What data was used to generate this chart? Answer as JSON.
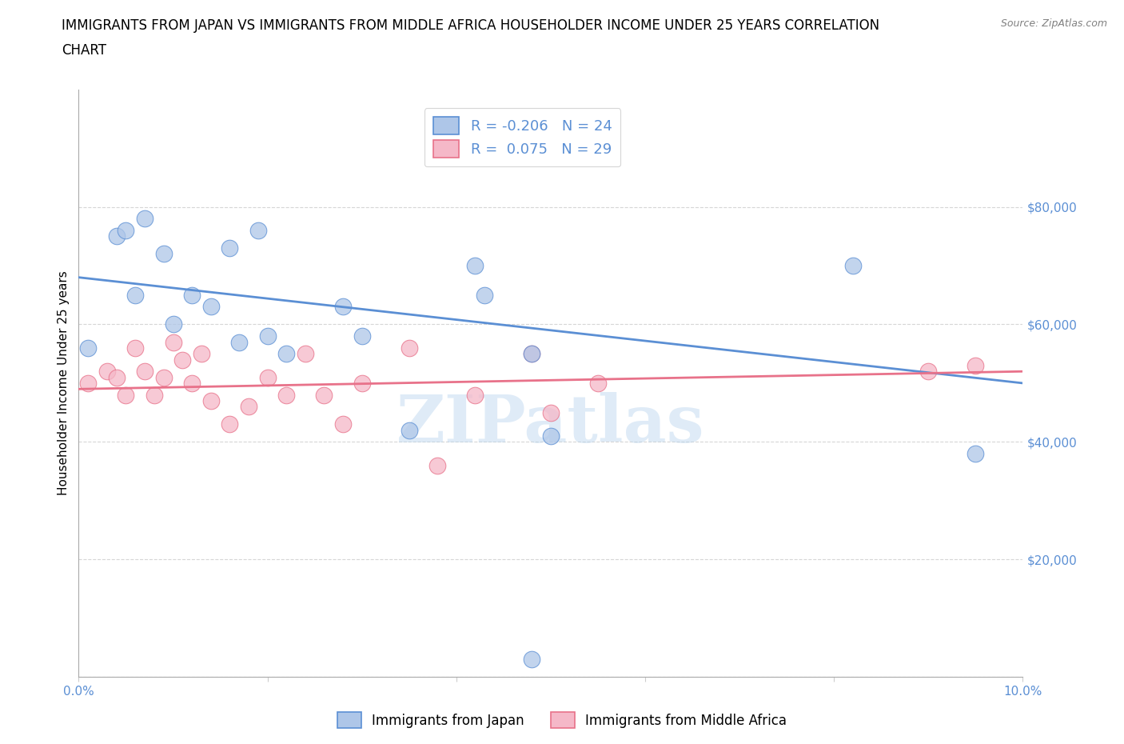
{
  "title_line1": "IMMIGRANTS FROM JAPAN VS IMMIGRANTS FROM MIDDLE AFRICA HOUSEHOLDER INCOME UNDER 25 YEARS CORRELATION",
  "title_line2": "CHART",
  "source": "Source: ZipAtlas.com",
  "ylabel": "Householder Income Under 25 years",
  "xlim": [
    0.0,
    0.1
  ],
  "ylim": [
    0,
    100000
  ],
  "yticks": [
    0,
    20000,
    40000,
    60000,
    80000
  ],
  "ytick_labels": [
    "",
    "$20,000",
    "$40,000",
    "$60,000",
    "$80,000"
  ],
  "xticks": [
    0.0,
    0.02,
    0.04,
    0.06,
    0.08,
    0.1
  ],
  "xtick_labels": [
    "0.0%",
    "",
    "",
    "",
    "",
    "10.0%"
  ],
  "japan_color": "#aec6e8",
  "japan_line_color": "#5b8fd4",
  "africa_color": "#f5b8c8",
  "africa_line_color": "#e8728a",
  "watermark_color": "#b8d4ee",
  "watermark_text": "ZIPatlas",
  "tick_color": "#5b8fd4",
  "grid_color": "#cccccc",
  "background_color": "#ffffff",
  "title_fontsize": 12,
  "tick_fontsize": 11,
  "axis_label_fontsize": 11,
  "japan_x": [
    0.001,
    0.004,
    0.005,
    0.006,
    0.007,
    0.009,
    0.01,
    0.012,
    0.014,
    0.016,
    0.017,
    0.019,
    0.02,
    0.022,
    0.028,
    0.03,
    0.035,
    0.042,
    0.043,
    0.048,
    0.05,
    0.082,
    0.095,
    0.048
  ],
  "japan_y": [
    56000,
    75000,
    76000,
    65000,
    78000,
    72000,
    60000,
    65000,
    63000,
    73000,
    57000,
    76000,
    58000,
    55000,
    63000,
    58000,
    42000,
    70000,
    65000,
    55000,
    41000,
    70000,
    38000,
    3000
  ],
  "africa_x": [
    0.001,
    0.003,
    0.004,
    0.005,
    0.006,
    0.007,
    0.008,
    0.009,
    0.01,
    0.011,
    0.012,
    0.013,
    0.014,
    0.016,
    0.018,
    0.02,
    0.022,
    0.024,
    0.026,
    0.028,
    0.03,
    0.035,
    0.038,
    0.042,
    0.048,
    0.05,
    0.055,
    0.09,
    0.095
  ],
  "africa_y": [
    50000,
    52000,
    51000,
    48000,
    56000,
    52000,
    48000,
    51000,
    57000,
    54000,
    50000,
    55000,
    47000,
    43000,
    46000,
    51000,
    48000,
    55000,
    48000,
    43000,
    50000,
    56000,
    36000,
    48000,
    55000,
    45000,
    50000,
    52000,
    53000
  ],
  "japan_line_x0": 0.0,
  "japan_line_y0": 68000,
  "japan_line_x1": 0.1,
  "japan_line_y1": 50000,
  "africa_line_x0": 0.0,
  "africa_line_y0": 49000,
  "africa_line_x1": 0.1,
  "africa_line_y1": 52000,
  "legend_r1_text": "R = -0.206   N = 24",
  "legend_r2_text": "R =  0.075   N = 29"
}
